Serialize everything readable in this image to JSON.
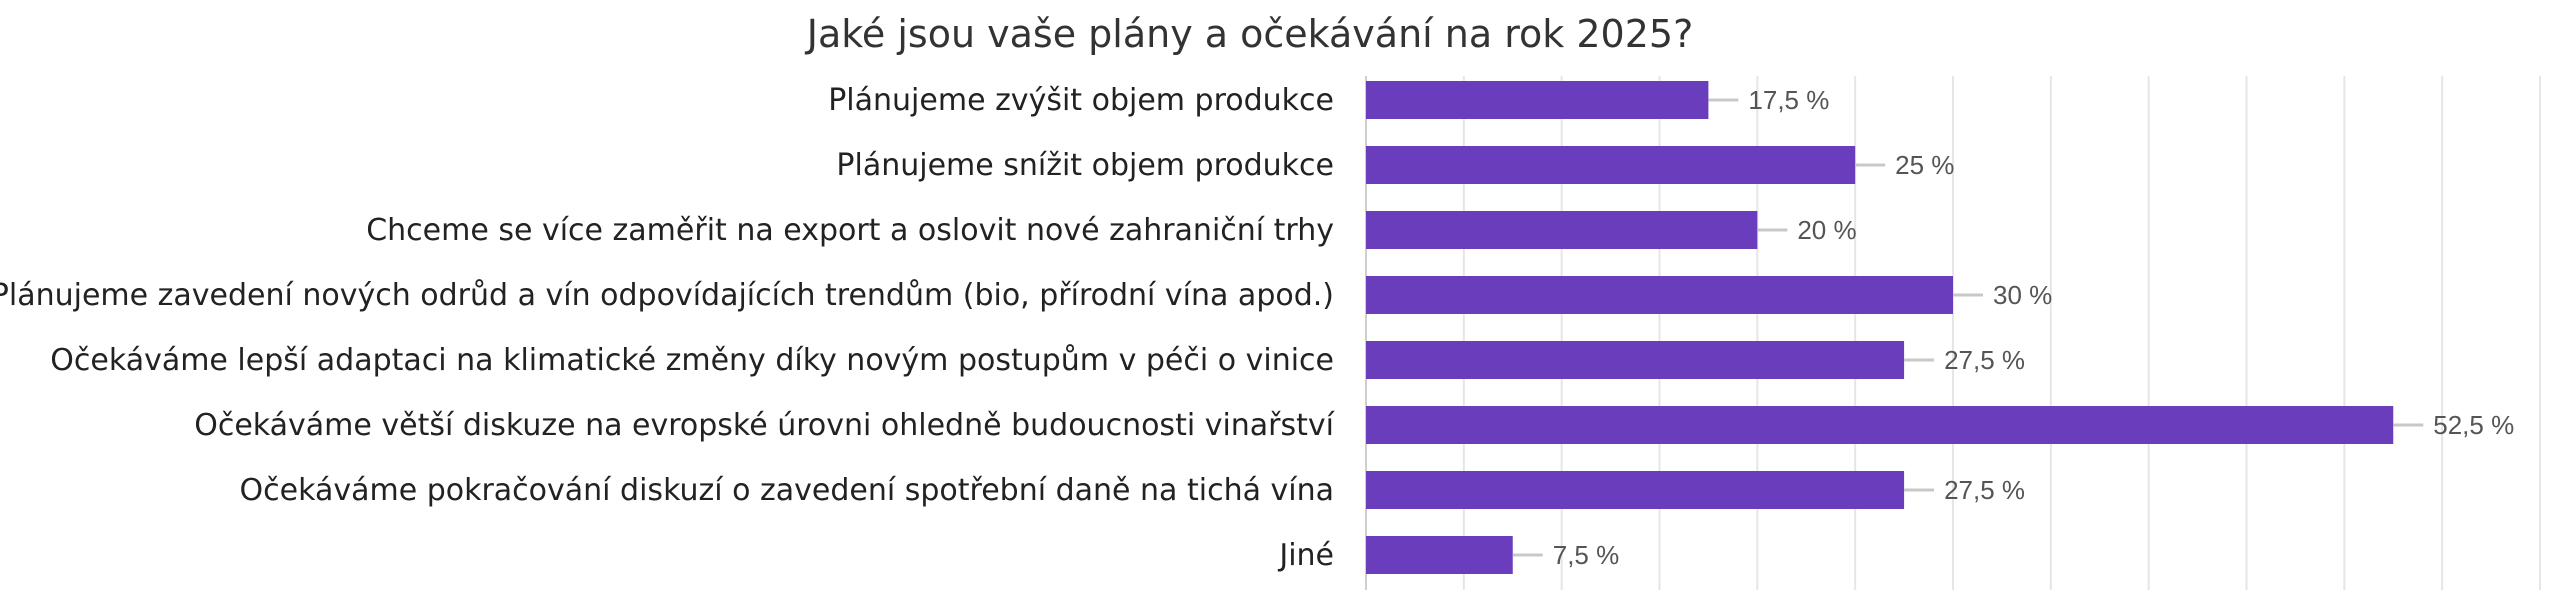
{
  "chart_data": {
    "type": "bar",
    "orientation": "horizontal",
    "title": "Jaké jsou vaše plány a očekávání na rok 2025?",
    "categories": [
      "Plánujeme zvýšit objem produkce",
      "Plánujeme snížit objem produkce",
      "Chceme se více zaměřit na export a oslovit nové zahraniční trhy",
      "Plánujeme zavedení nových odrůd a vín odpovídajících trendům (bio, přírodní vína apod.)",
      "Očekáváme lepší adaptaci na klimatické změny díky novým postupům v péči o vinice",
      "Očekáváme větší diskuze na evropské úrovni ohledně budoucnosti vinařství",
      "Očekáváme pokračování diskuzí o zavedení spotřební daně na tichá vína",
      "Jiné"
    ],
    "values": [
      17.5,
      25,
      20,
      30,
      27.5,
      52.5,
      27.5,
      7.5
    ],
    "value_labels": [
      "17,5 %",
      "25 %",
      "20 %",
      "30 %",
      "27,5 %",
      "52,5 %",
      "27,5 %",
      "7,5 %"
    ],
    "xlim": [
      0,
      60
    ],
    "grid": true,
    "bar_color": "#6a3dbd",
    "grid_color": "#e6e6e6"
  }
}
